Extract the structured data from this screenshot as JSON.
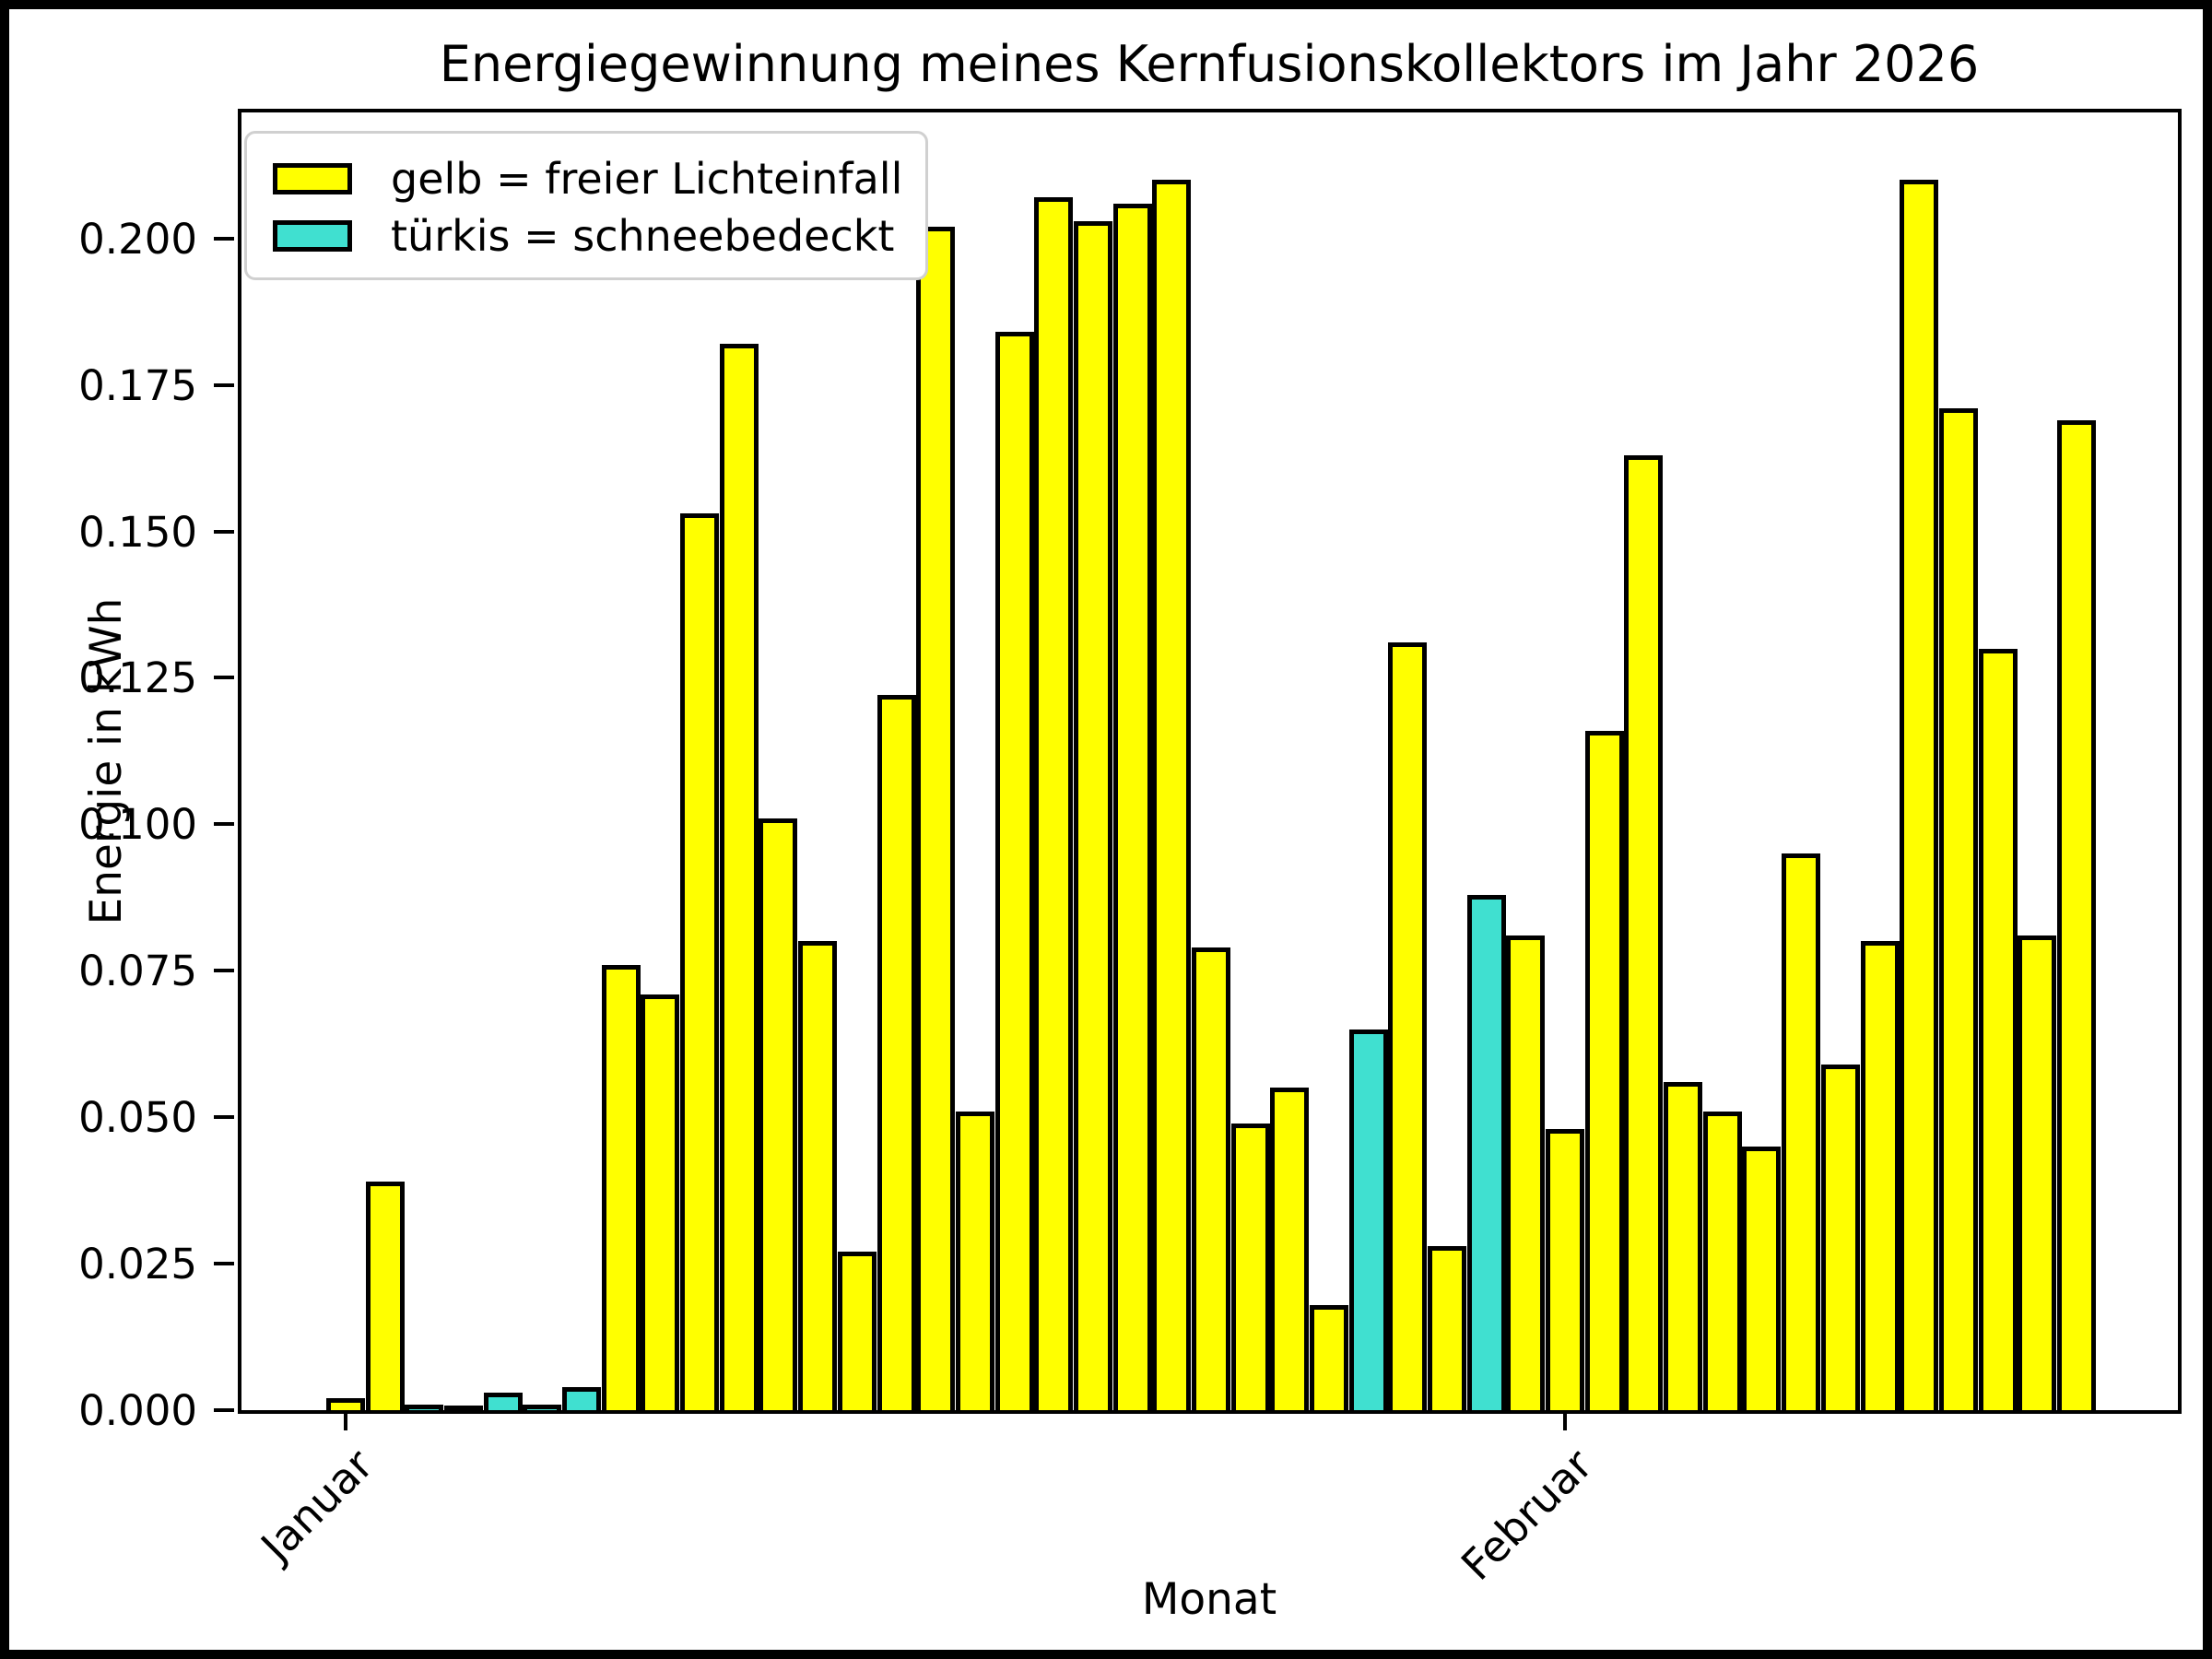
{
  "figure": {
    "title": "Energiegewinnung meines Kernfusionskollektors im Jahr 2026"
  },
  "chart_data": {
    "type": "bar",
    "title": "Energiegewinnung meines Kernfusionskollektors im Jahr 2026",
    "xlabel": "Monat",
    "ylabel": "Energie in kWh",
    "ylim": [
      0,
      0.2215
    ],
    "yticks": [
      0.0,
      0.025,
      0.05,
      0.075,
      0.1,
      0.125,
      0.15,
      0.175,
      0.2
    ],
    "ytick_labels": [
      "0.000",
      "0.025",
      "0.050",
      "0.075",
      "0.100",
      "0.125",
      "0.150",
      "0.175",
      "0.200"
    ],
    "xticks": [
      {
        "label": "Januar",
        "day": 1
      },
      {
        "label": "Februar",
        "day": 32
      }
    ],
    "legend": {
      "position": "upper-left",
      "entries": [
        {
          "label": "gelb = freier Lichteinfall",
          "color": "#ffff00"
        },
        {
          "label": "türkis = schneebedeckt",
          "color": "#40e0d0"
        }
      ]
    },
    "colors": {
      "free_light": "#ffff00",
      "snow_covered": "#40e0d0",
      "bar_edge": "#000000"
    },
    "grid": false,
    "bars": [
      {
        "day": 1,
        "value": 0.002,
        "snow": false
      },
      {
        "day": 2,
        "value": 0.039,
        "snow": false
      },
      {
        "day": 3,
        "value": 0.001,
        "snow": true
      },
      {
        "day": 4,
        "value": 0.0005,
        "snow": true
      },
      {
        "day": 5,
        "value": 0.003,
        "snow": true
      },
      {
        "day": 6,
        "value": 0.001,
        "snow": true
      },
      {
        "day": 7,
        "value": 0.004,
        "snow": true
      },
      {
        "day": 8,
        "value": 0.076,
        "snow": false
      },
      {
        "day": 9,
        "value": 0.071,
        "snow": false
      },
      {
        "day": 10,
        "value": 0.153,
        "snow": false
      },
      {
        "day": 11,
        "value": 0.182,
        "snow": false
      },
      {
        "day": 12,
        "value": 0.101,
        "snow": false
      },
      {
        "day": 13,
        "value": 0.08,
        "snow": false
      },
      {
        "day": 14,
        "value": 0.027,
        "snow": false
      },
      {
        "day": 15,
        "value": 0.122,
        "snow": false
      },
      {
        "day": 16,
        "value": 0.202,
        "snow": false
      },
      {
        "day": 17,
        "value": 0.051,
        "snow": false
      },
      {
        "day": 18,
        "value": 0.184,
        "snow": false
      },
      {
        "day": 19,
        "value": 0.207,
        "snow": false
      },
      {
        "day": 20,
        "value": 0.203,
        "snow": false
      },
      {
        "day": 21,
        "value": 0.206,
        "snow": false
      },
      {
        "day": 22,
        "value": 0.21,
        "snow": false
      },
      {
        "day": 23,
        "value": 0.079,
        "snow": false
      },
      {
        "day": 24,
        "value": 0.049,
        "snow": false
      },
      {
        "day": 25,
        "value": 0.055,
        "snow": false
      },
      {
        "day": 26,
        "value": 0.018,
        "snow": false
      },
      {
        "day": 27,
        "value": 0.065,
        "snow": true
      },
      {
        "day": 28,
        "value": 0.131,
        "snow": false
      },
      {
        "day": 29,
        "value": 0.028,
        "snow": false
      },
      {
        "day": 30,
        "value": 0.088,
        "snow": true
      },
      {
        "day": 31,
        "value": 0.081,
        "snow": false
      },
      {
        "day": 32,
        "value": 0.048,
        "snow": false
      },
      {
        "day": 33,
        "value": 0.116,
        "snow": false
      },
      {
        "day": 34,
        "value": 0.163,
        "snow": false
      },
      {
        "day": 35,
        "value": 0.056,
        "snow": false
      },
      {
        "day": 36,
        "value": 0.051,
        "snow": false
      },
      {
        "day": 37,
        "value": 0.045,
        "snow": false
      },
      {
        "day": 38,
        "value": 0.095,
        "snow": false
      },
      {
        "day": 39,
        "value": 0.059,
        "snow": false
      },
      {
        "day": 40,
        "value": 0.08,
        "snow": false
      },
      {
        "day": 41,
        "value": 0.21,
        "snow": false
      },
      {
        "day": 42,
        "value": 0.171,
        "snow": false
      },
      {
        "day": 43,
        "value": 0.13,
        "snow": false
      },
      {
        "day": 44,
        "value": 0.081,
        "snow": false
      },
      {
        "day": 45,
        "value": 0.169,
        "snow": false
      }
    ]
  }
}
